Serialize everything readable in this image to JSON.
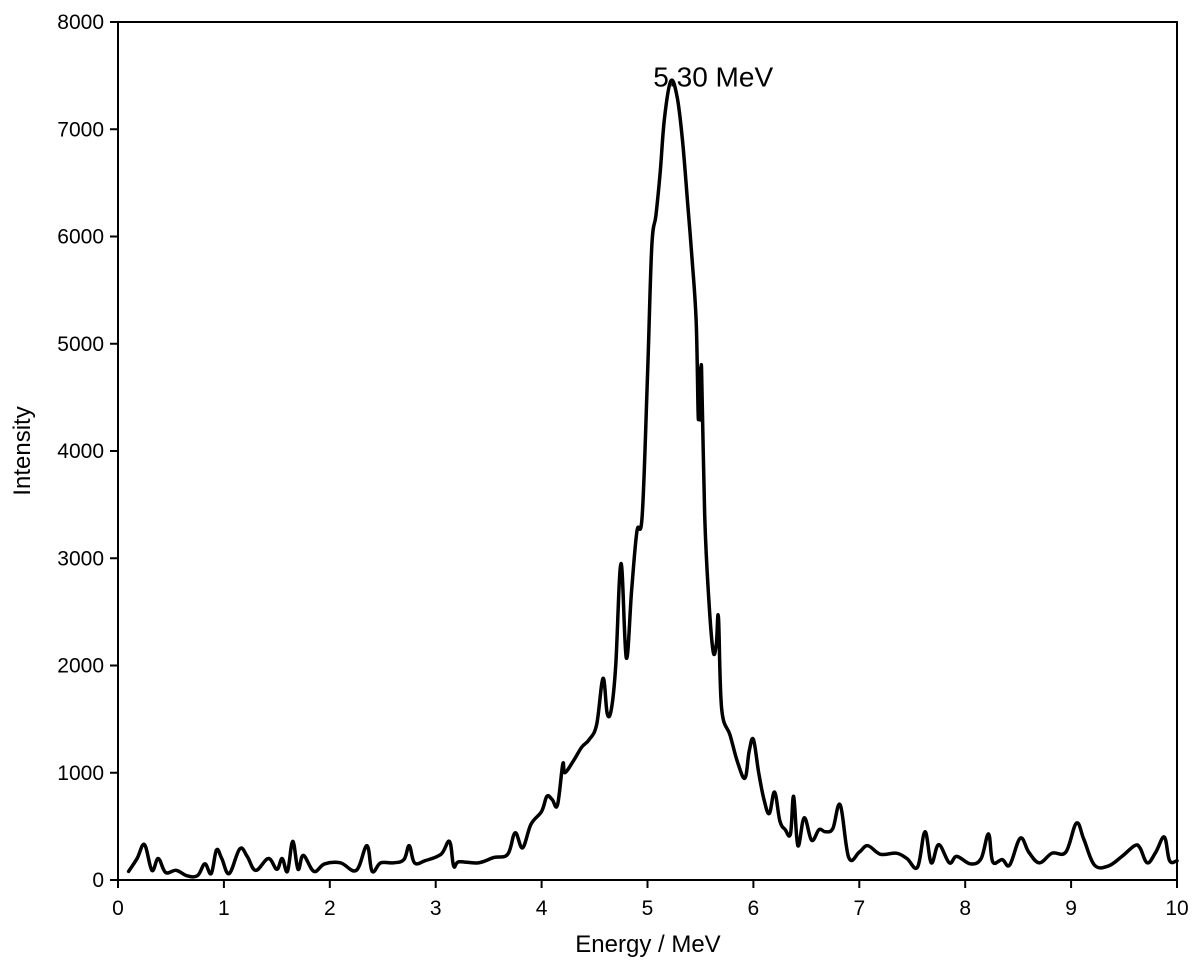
{
  "chart_data": {
    "type": "line",
    "xlabel": "Energy / MeV",
    "ylabel": "Intensity",
    "xlim": [
      0,
      10
    ],
    "ylim": [
      0,
      8000
    ],
    "xticks": [
      0,
      1,
      2,
      3,
      4,
      5,
      6,
      7,
      8,
      9,
      10
    ],
    "yticks": [
      0,
      1000,
      2000,
      3000,
      4000,
      5000,
      6000,
      7000,
      8000
    ],
    "grid": false,
    "annotation": {
      "text": "5.30 MeV",
      "x": 5.3,
      "y": 7400
    },
    "series": [
      {
        "color": "#000000",
        "points": [
          [
            0.1,
            80
          ],
          [
            0.18,
            200
          ],
          [
            0.25,
            330
          ],
          [
            0.32,
            90
          ],
          [
            0.38,
            200
          ],
          [
            0.45,
            70
          ],
          [
            0.55,
            90
          ],
          [
            0.65,
            40
          ],
          [
            0.75,
            40
          ],
          [
            0.82,
            150
          ],
          [
            0.88,
            60
          ],
          [
            0.93,
            280
          ],
          [
            0.98,
            200
          ],
          [
            1.05,
            60
          ],
          [
            1.15,
            290
          ],
          [
            1.22,
            220
          ],
          [
            1.3,
            90
          ],
          [
            1.42,
            200
          ],
          [
            1.5,
            100
          ],
          [
            1.55,
            200
          ],
          [
            1.6,
            80
          ],
          [
            1.65,
            360
          ],
          [
            1.7,
            100
          ],
          [
            1.75,
            230
          ],
          [
            1.85,
            80
          ],
          [
            1.95,
            150
          ],
          [
            2.1,
            160
          ],
          [
            2.25,
            90
          ],
          [
            2.35,
            320
          ],
          [
            2.4,
            80
          ],
          [
            2.48,
            160
          ],
          [
            2.6,
            160
          ],
          [
            2.7,
            190
          ],
          [
            2.75,
            320
          ],
          [
            2.8,
            160
          ],
          [
            2.9,
            180
          ],
          [
            3.05,
            240
          ],
          [
            3.13,
            360
          ],
          [
            3.17,
            130
          ],
          [
            3.22,
            170
          ],
          [
            3.4,
            160
          ],
          [
            3.55,
            210
          ],
          [
            3.68,
            240
          ],
          [
            3.75,
            440
          ],
          [
            3.82,
            300
          ],
          [
            3.9,
            520
          ],
          [
            4.0,
            640
          ],
          [
            4.05,
            780
          ],
          [
            4.1,
            750
          ],
          [
            4.15,
            700
          ],
          [
            4.2,
            1080
          ],
          [
            4.22,
            1000
          ],
          [
            4.3,
            1110
          ],
          [
            4.38,
            1240
          ],
          [
            4.45,
            1310
          ],
          [
            4.52,
            1450
          ],
          [
            4.58,
            1880
          ],
          [
            4.62,
            1550
          ],
          [
            4.66,
            1600
          ],
          [
            4.7,
            2000
          ],
          [
            4.75,
            2950
          ],
          [
            4.8,
            2070
          ],
          [
            4.85,
            2700
          ],
          [
            4.9,
            3250
          ],
          [
            4.95,
            3400
          ],
          [
            5.0,
            4700
          ],
          [
            5.04,
            5900
          ],
          [
            5.08,
            6200
          ],
          [
            5.12,
            6600
          ],
          [
            5.16,
            7100
          ],
          [
            5.22,
            7450
          ],
          [
            5.28,
            7300
          ],
          [
            5.33,
            6900
          ],
          [
            5.38,
            6300
          ],
          [
            5.42,
            5800
          ],
          [
            5.46,
            5200
          ],
          [
            5.48,
            4300
          ],
          [
            5.49,
            4770
          ],
          [
            5.5,
            4290
          ],
          [
            5.51,
            4780
          ],
          [
            5.54,
            3400
          ],
          [
            5.58,
            2600
          ],
          [
            5.62,
            2130
          ],
          [
            5.65,
            2200
          ],
          [
            5.67,
            2450
          ],
          [
            5.7,
            1600
          ],
          [
            5.78,
            1350
          ],
          [
            5.85,
            1100
          ],
          [
            5.92,
            950
          ],
          [
            5.96,
            1200
          ],
          [
            6.0,
            1310
          ],
          [
            6.05,
            1000
          ],
          [
            6.1,
            750
          ],
          [
            6.15,
            620
          ],
          [
            6.2,
            820
          ],
          [
            6.25,
            550
          ],
          [
            6.3,
            470
          ],
          [
            6.35,
            430
          ],
          [
            6.38,
            780
          ],
          [
            6.42,
            320
          ],
          [
            6.48,
            580
          ],
          [
            6.55,
            370
          ],
          [
            6.62,
            470
          ],
          [
            6.68,
            450
          ],
          [
            6.75,
            480
          ],
          [
            6.82,
            700
          ],
          [
            6.9,
            210
          ],
          [
            7.0,
            260
          ],
          [
            7.08,
            320
          ],
          [
            7.2,
            240
          ],
          [
            7.35,
            250
          ],
          [
            7.45,
            200
          ],
          [
            7.55,
            120
          ],
          [
            7.62,
            450
          ],
          [
            7.68,
            160
          ],
          [
            7.75,
            330
          ],
          [
            7.85,
            160
          ],
          [
            7.92,
            220
          ],
          [
            8.05,
            150
          ],
          [
            8.15,
            200
          ],
          [
            8.22,
            430
          ],
          [
            8.26,
            170
          ],
          [
            8.35,
            190
          ],
          [
            8.42,
            140
          ],
          [
            8.52,
            390
          ],
          [
            8.6,
            260
          ],
          [
            8.7,
            160
          ],
          [
            8.82,
            250
          ],
          [
            8.95,
            260
          ],
          [
            9.05,
            530
          ],
          [
            9.12,
            380
          ],
          [
            9.22,
            140
          ],
          [
            9.35,
            130
          ],
          [
            9.48,
            220
          ],
          [
            9.6,
            320
          ],
          [
            9.65,
            300
          ],
          [
            9.72,
            160
          ],
          [
            9.8,
            260
          ],
          [
            9.88,
            400
          ],
          [
            9.93,
            180
          ],
          [
            10.0,
            180
          ]
        ]
      }
    ]
  }
}
